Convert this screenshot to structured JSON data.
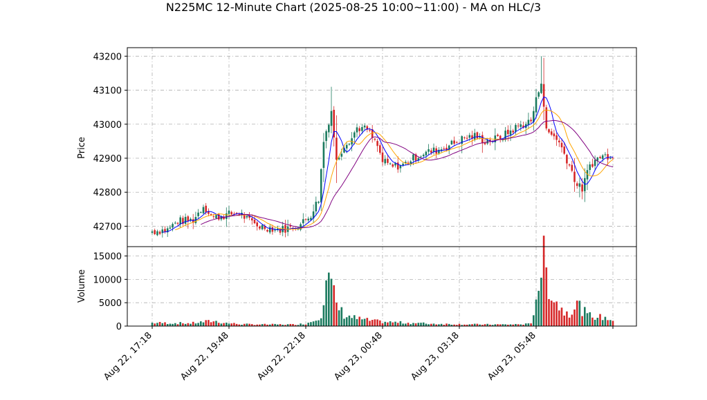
{
  "chart_data": {
    "type": "candlestick",
    "title": "N225MC 12-Minute Chart (2025-08-25 10:00~11:00) - MA on HLC/3",
    "price_panel": {
      "ylabel": "Price",
      "ylim": [
        42640,
        43225
      ],
      "yticks": [
        42700,
        42800,
        42900,
        43000,
        43100,
        43200
      ],
      "ytick_labels": [
        "42700",
        "42800",
        "42900",
        "43000",
        "43100",
        "43200"
      ],
      "grid": true
    },
    "volume_panel": {
      "ylabel": "Volume",
      "ylim": [
        0,
        17000
      ],
      "yticks": [
        0,
        5000,
        10000,
        15000
      ],
      "ytick_labels": [
        "0",
        "5000",
        "10000",
        "15000"
      ],
      "grid": true
    },
    "xticks": [
      {
        "index": 0,
        "label": "Aug 22, 17:18"
      },
      {
        "index": 30,
        "label": "Aug 22, 19:48"
      },
      {
        "index": 60,
        "label": "Aug 22, 22:18"
      },
      {
        "index": 90,
        "label": "Aug 23, 00:48"
      },
      {
        "index": 120,
        "label": "Aug 23, 03:18"
      },
      {
        "index": 150,
        "label": "Aug 23, 05:48"
      }
    ],
    "n_bars": 181,
    "colors": {
      "up": "#1a7a5e",
      "down": "#d62728",
      "ma_short": "#0000ff",
      "ma_mid": "#ffa500",
      "ma_long": "#800080",
      "grid": "#b0b0b0"
    },
    "price_anchors": [
      [
        0,
        42685
      ],
      [
        6,
        42690
      ],
      [
        10,
        42715
      ],
      [
        16,
        42718
      ],
      [
        20,
        42760
      ],
      [
        24,
        42725
      ],
      [
        30,
        42735
      ],
      [
        34,
        42740
      ],
      [
        38,
        42715
      ],
      [
        42,
        42700
      ],
      [
        46,
        42695
      ],
      [
        50,
        42690
      ],
      [
        54,
        42695
      ],
      [
        58,
        42705
      ],
      [
        62,
        42735
      ],
      [
        65,
        42780
      ],
      [
        67,
        42950
      ],
      [
        70,
        43040
      ],
      [
        72,
        42890
      ],
      [
        75,
        42940
      ],
      [
        78,
        42960
      ],
      [
        80,
        42990
      ],
      [
        84,
        42985
      ],
      [
        88,
        42935
      ],
      [
        90,
        42890
      ],
      [
        94,
        42875
      ],
      [
        98,
        42880
      ],
      [
        102,
        42900
      ],
      [
        106,
        42915
      ],
      [
        112,
        42925
      ],
      [
        118,
        42945
      ],
      [
        122,
        42960
      ],
      [
        126,
        42965
      ],
      [
        130,
        42950
      ],
      [
        136,
        42960
      ],
      [
        142,
        42990
      ],
      [
        148,
        43010
      ],
      [
        152,
        43130
      ],
      [
        154,
        42980
      ],
      [
        158,
        42960
      ],
      [
        160,
        42930
      ],
      [
        163,
        42880
      ],
      [
        166,
        42820
      ],
      [
        168,
        42810
      ],
      [
        171,
        42880
      ],
      [
        175,
        42905
      ],
      [
        180,
        42910
      ]
    ],
    "volume_anchors": [
      [
        0,
        700
      ],
      [
        15,
        600
      ],
      [
        20,
        900
      ],
      [
        24,
        1100
      ],
      [
        28,
        700
      ],
      [
        35,
        400
      ],
      [
        45,
        350
      ],
      [
        55,
        350
      ],
      [
        60,
        500
      ],
      [
        63,
        1200
      ],
      [
        66,
        2500
      ],
      [
        68,
        10500
      ],
      [
        70,
        8500
      ],
      [
        72,
        4500
      ],
      [
        75,
        2400
      ],
      [
        80,
        1600
      ],
      [
        85,
        1200
      ],
      [
        90,
        900
      ],
      [
        100,
        700
      ],
      [
        110,
        500
      ],
      [
        120,
        400
      ],
      [
        130,
        350
      ],
      [
        140,
        350
      ],
      [
        148,
        450
      ],
      [
        151,
        9500
      ],
      [
        153,
        14000
      ],
      [
        155,
        9000
      ],
      [
        157,
        6000
      ],
      [
        160,
        3500
      ],
      [
        163,
        3000
      ],
      [
        166,
        4800
      ],
      [
        170,
        2300
      ],
      [
        175,
        1900
      ],
      [
        180,
        1400
      ]
    ]
  }
}
